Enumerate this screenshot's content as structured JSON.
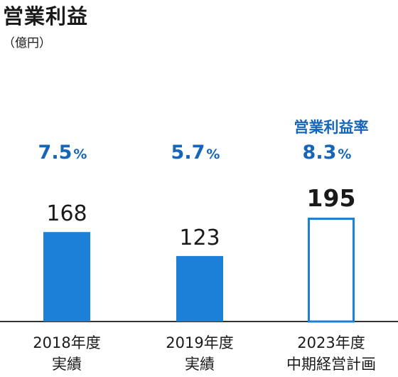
{
  "chart_data": {
    "type": "bar",
    "title": "営業利益",
    "unit": "（億円）",
    "series_label": "営業利益率",
    "categories": [
      [
        "2018年度",
        "実績"
      ],
      [
        "2019年度",
        "実績"
      ],
      [
        "2023年度",
        "中期経営計画"
      ]
    ],
    "values": [
      168,
      123,
      195
    ],
    "value_labels": [
      "168",
      "123",
      "195"
    ],
    "margin_values": [
      "7.5",
      "5.7",
      "8.3"
    ],
    "margin_unit": "%",
    "bar_styles": [
      "filled",
      "filled",
      "outline"
    ],
    "value_emphasis": [
      false,
      false,
      true
    ],
    "ylim": [
      0,
      195
    ],
    "grid": false,
    "colors": {
      "bar": "#1c7fd8",
      "accent_text": "#1565b8",
      "axis": "#333333"
    }
  }
}
